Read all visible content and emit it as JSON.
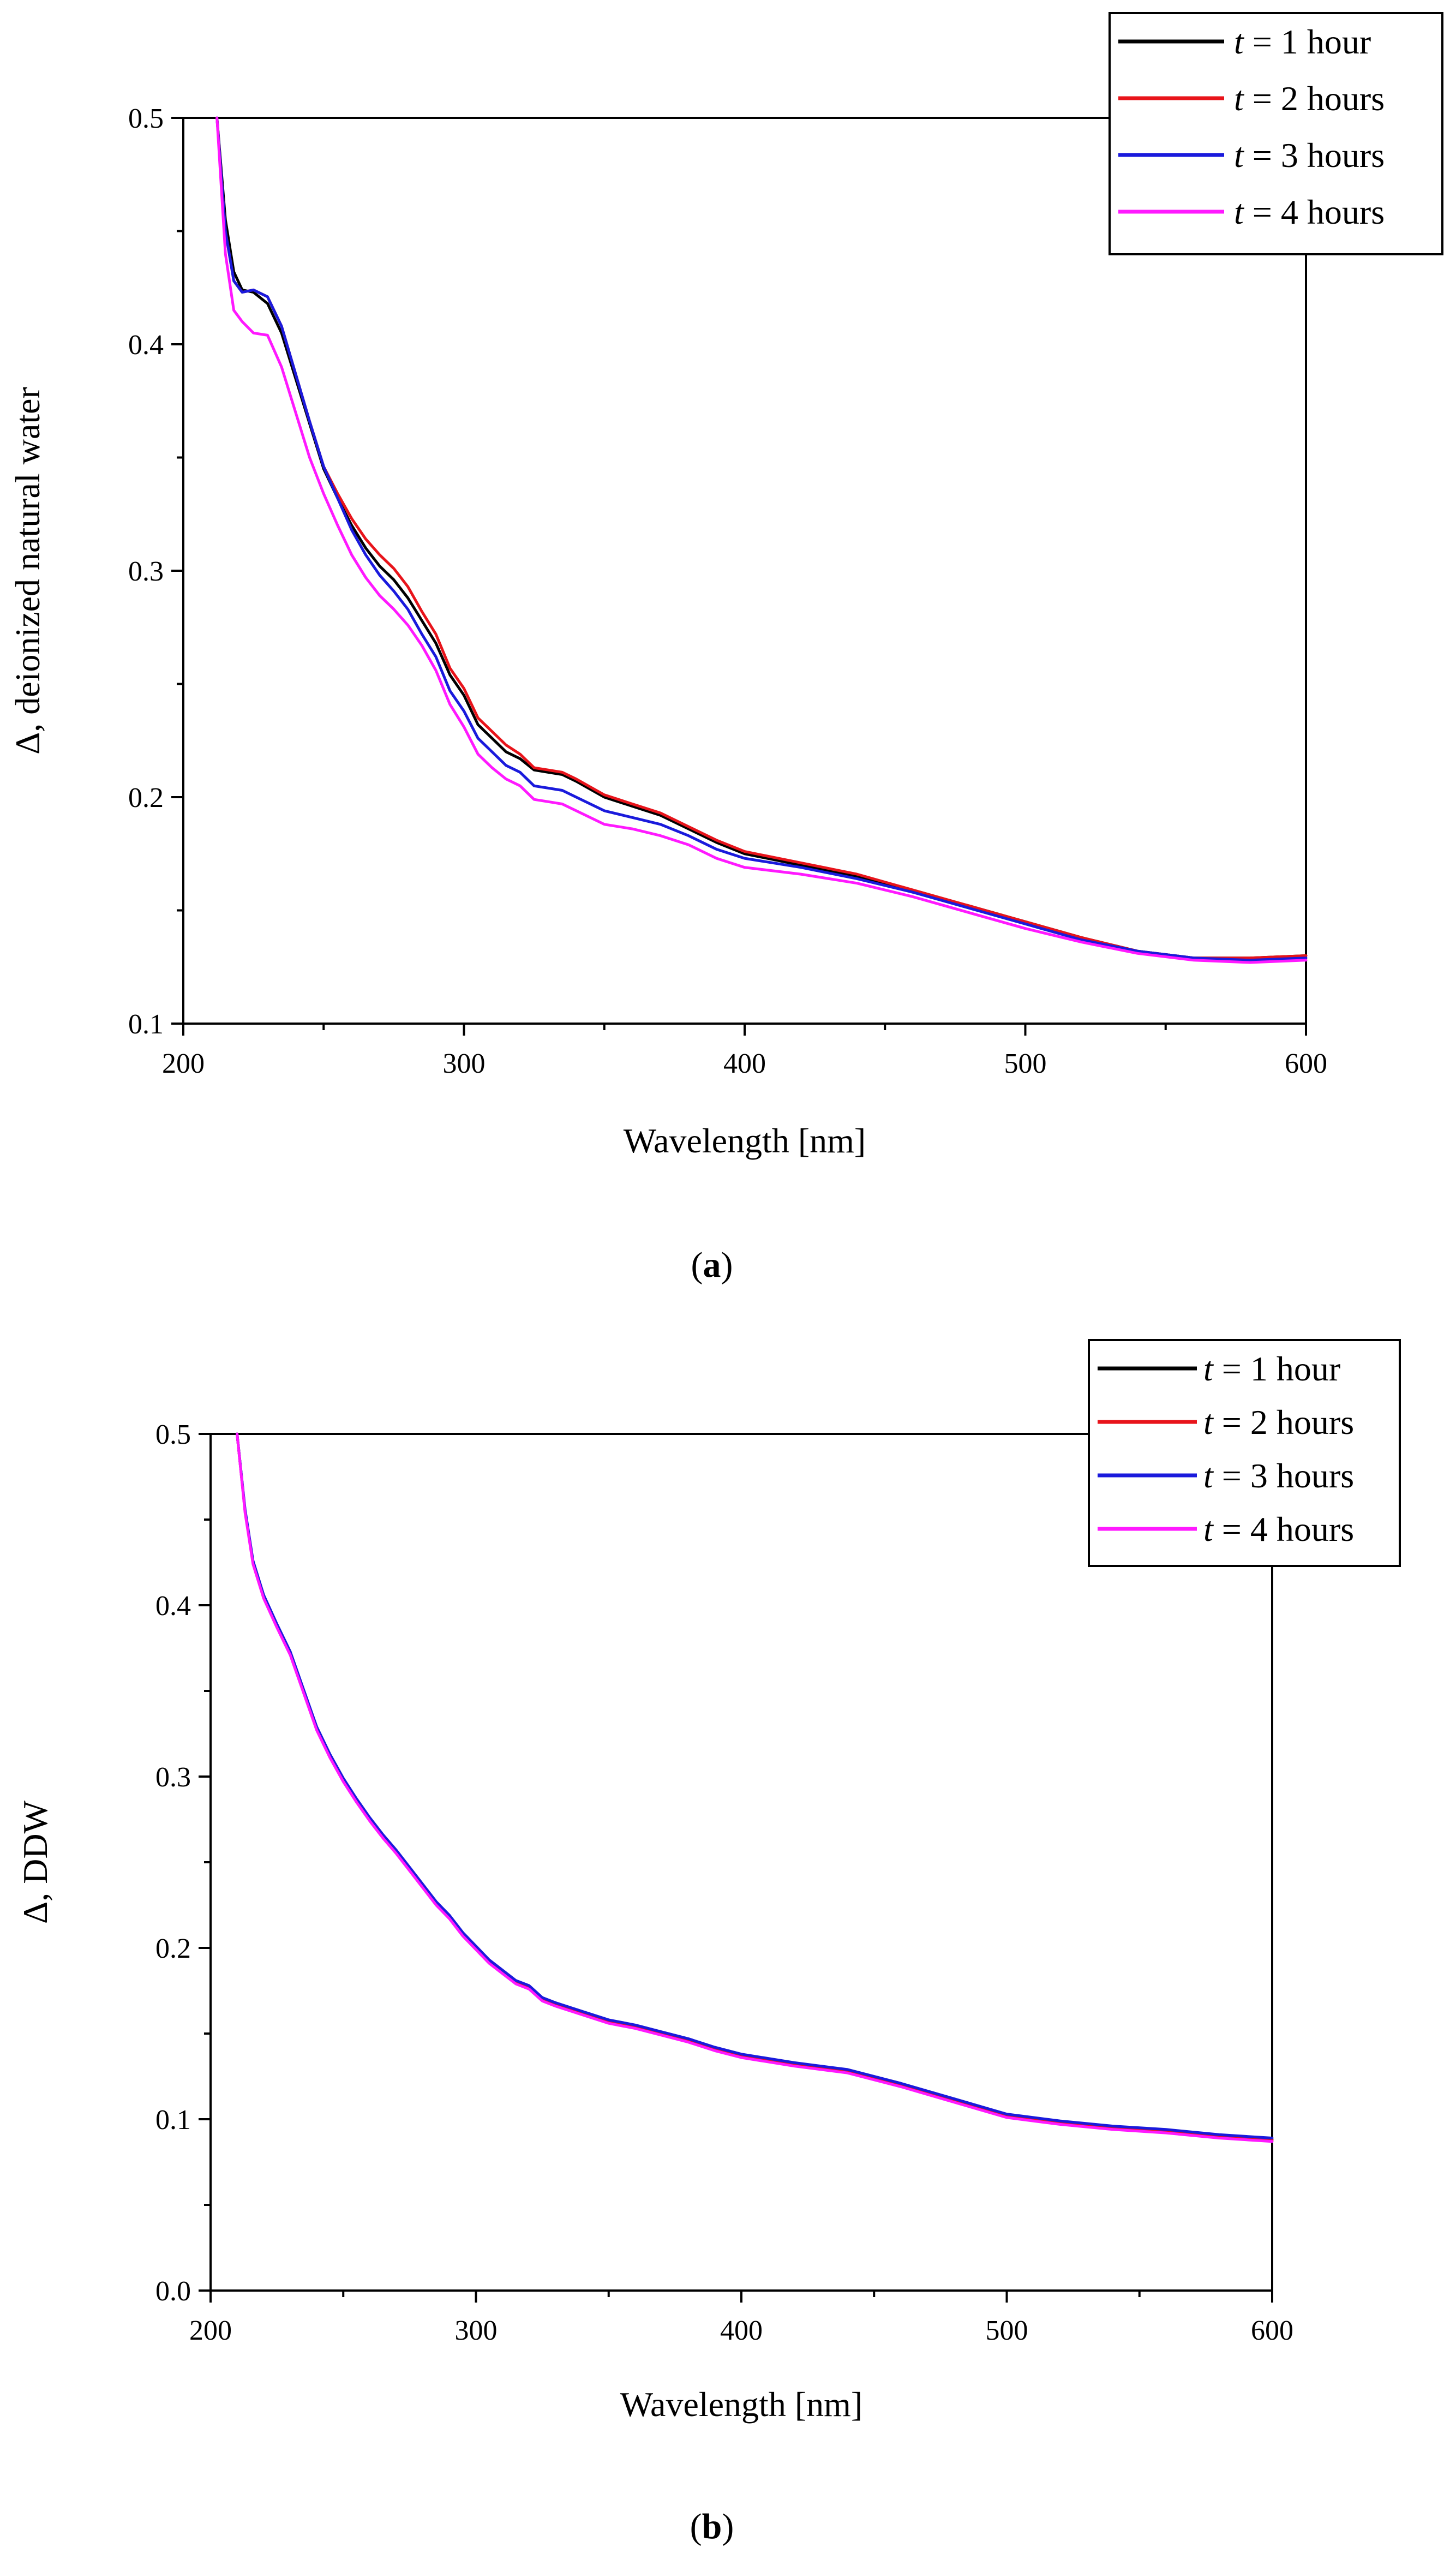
{
  "chart_data": [
    {
      "type": "line",
      "panel_label": "a",
      "xlabel": "Wavelength [nm]",
      "ylabel": "Δ, deionized natural water",
      "xlim": [
        200,
        600
      ],
      "ylim": [
        0.1,
        0.5
      ],
      "xticks": [
        "200",
        "300",
        "400",
        "500",
        "600"
      ],
      "yticks": [
        "0.1",
        "0.2",
        "0.3",
        "0.4",
        "0.5"
      ],
      "legend_position": "top-right",
      "x": [
        212,
        215,
        218,
        221,
        225,
        230,
        235,
        240,
        245,
        250,
        255,
        260,
        265,
        270,
        275,
        280,
        285,
        290,
        295,
        300,
        305,
        310,
        315,
        320,
        325,
        330,
        335,
        340,
        350,
        360,
        370,
        380,
        390,
        400,
        420,
        440,
        460,
        480,
        500,
        520,
        540,
        560,
        580,
        600
      ],
      "series": [
        {
          "name": "t = 1 hour",
          "var": "t",
          "rest": " = 1 hour",
          "color": "#000000",
          "values": [
            0.5,
            0.455,
            0.432,
            0.424,
            0.423,
            0.418,
            0.405,
            0.385,
            0.365,
            0.345,
            0.332,
            0.32,
            0.31,
            0.302,
            0.296,
            0.288,
            0.278,
            0.268,
            0.254,
            0.245,
            0.232,
            0.226,
            0.22,
            0.217,
            0.212,
            0.211,
            0.21,
            0.207,
            0.2,
            0.196,
            0.192,
            0.186,
            0.18,
            0.175,
            0.17,
            0.165,
            0.158,
            0.152,
            0.145,
            0.138,
            0.132,
            0.129,
            0.129,
            0.13
          ]
        },
        {
          "name": "t = 2 hours",
          "var": "t",
          "rest": " = 2 hours",
          "color": "#e8141b",
          "values": [
            0.5,
            0.45,
            0.428,
            0.423,
            0.424,
            0.421,
            0.408,
            0.387,
            0.366,
            0.346,
            0.334,
            0.323,
            0.314,
            0.307,
            0.301,
            0.293,
            0.282,
            0.272,
            0.257,
            0.248,
            0.235,
            0.229,
            0.223,
            0.219,
            0.213,
            0.212,
            0.211,
            0.208,
            0.201,
            0.197,
            0.193,
            0.187,
            0.181,
            0.176,
            0.171,
            0.166,
            0.159,
            0.152,
            0.145,
            0.138,
            0.132,
            0.129,
            0.129,
            0.13
          ]
        },
        {
          "name": "t = 3 hours",
          "var": "t",
          "rest": " = 3 hours",
          "color": "#1a1adc",
          "values": [
            0.5,
            0.45,
            0.428,
            0.423,
            0.424,
            0.421,
            0.408,
            0.387,
            0.366,
            0.346,
            0.332,
            0.318,
            0.307,
            0.298,
            0.291,
            0.283,
            0.272,
            0.262,
            0.247,
            0.238,
            0.226,
            0.22,
            0.214,
            0.211,
            0.205,
            0.204,
            0.203,
            0.2,
            0.194,
            0.191,
            0.188,
            0.183,
            0.177,
            0.173,
            0.169,
            0.164,
            0.158,
            0.151,
            0.144,
            0.137,
            0.132,
            0.129,
            0.128,
            0.129
          ]
        },
        {
          "name": "t = 4 hours",
          "var": "t",
          "rest": " = 4 hours",
          "color": "#ff19ff",
          "values": [
            0.5,
            0.44,
            0.415,
            0.41,
            0.405,
            0.404,
            0.39,
            0.37,
            0.35,
            0.334,
            0.32,
            0.307,
            0.297,
            0.289,
            0.283,
            0.276,
            0.267,
            0.256,
            0.241,
            0.231,
            0.219,
            0.213,
            0.208,
            0.205,
            0.199,
            0.198,
            0.197,
            0.194,
            0.188,
            0.186,
            0.183,
            0.179,
            0.173,
            0.169,
            0.166,
            0.162,
            0.156,
            0.149,
            0.142,
            0.136,
            0.131,
            0.128,
            0.127,
            0.128
          ]
        }
      ]
    },
    {
      "type": "line",
      "panel_label": "b",
      "xlabel": "Wavelength [nm]",
      "ylabel": "Δ, DDW",
      "xlim": [
        200,
        600
      ],
      "ylim": [
        0.0,
        0.5
      ],
      "xticks": [
        "200",
        "300",
        "400",
        "500",
        "600"
      ],
      "yticks": [
        "0.0",
        "0.1",
        "0.2",
        "0.3",
        "0.4",
        "0.5"
      ],
      "legend_position": "top-right",
      "x": [
        210,
        213,
        216,
        220,
        225,
        230,
        235,
        240,
        245,
        250,
        255,
        260,
        265,
        270,
        275,
        280,
        285,
        290,
        295,
        300,
        305,
        310,
        315,
        320,
        325,
        330,
        340,
        350,
        360,
        370,
        380,
        390,
        400,
        420,
        440,
        460,
        480,
        500,
        520,
        540,
        560,
        580,
        600
      ],
      "series": [
        {
          "name": "t = 1 hour",
          "var": "t",
          "rest": " = 1 hour",
          "color": "#000000",
          "values": [
            0.5,
            0.455,
            0.425,
            0.405,
            0.388,
            0.372,
            0.35,
            0.328,
            0.312,
            0.298,
            0.286,
            0.275,
            0.265,
            0.256,
            0.246,
            0.236,
            0.226,
            0.218,
            0.208,
            0.2,
            0.192,
            0.186,
            0.18,
            0.177,
            0.17,
            0.167,
            0.162,
            0.157,
            0.154,
            0.15,
            0.146,
            0.141,
            0.137,
            0.132,
            0.128,
            0.12,
            0.111,
            0.102,
            0.098,
            0.095,
            0.093,
            0.09,
            0.088
          ]
        },
        {
          "name": "t = 2 hours",
          "var": "t",
          "rest": " = 2 hours",
          "color": "#e8141b",
          "values": [
            0.5,
            0.455,
            0.425,
            0.405,
            0.388,
            0.372,
            0.35,
            0.328,
            0.312,
            0.298,
            0.286,
            0.275,
            0.265,
            0.256,
            0.246,
            0.236,
            0.226,
            0.218,
            0.208,
            0.2,
            0.192,
            0.186,
            0.18,
            0.177,
            0.17,
            0.167,
            0.162,
            0.157,
            0.154,
            0.15,
            0.146,
            0.141,
            0.137,
            0.132,
            0.128,
            0.12,
            0.111,
            0.102,
            0.098,
            0.095,
            0.093,
            0.09,
            0.088
          ]
        },
        {
          "name": "t = 3 hours",
          "var": "t",
          "rest": " = 3 hours",
          "color": "#1a1adc",
          "values": [
            0.5,
            0.456,
            0.426,
            0.406,
            0.389,
            0.373,
            0.351,
            0.329,
            0.313,
            0.299,
            0.287,
            0.276,
            0.266,
            0.257,
            0.247,
            0.237,
            0.227,
            0.219,
            0.209,
            0.201,
            0.193,
            0.187,
            0.181,
            0.178,
            0.171,
            0.168,
            0.163,
            0.158,
            0.155,
            0.151,
            0.147,
            0.142,
            0.138,
            0.133,
            0.129,
            0.121,
            0.112,
            0.103,
            0.099,
            0.096,
            0.094,
            0.091,
            0.089
          ]
        },
        {
          "name": "t = 4 hours",
          "var": "t",
          "rest": " = 4 hours",
          "color": "#ff19ff",
          "values": [
            0.5,
            0.454,
            0.424,
            0.404,
            0.387,
            0.371,
            0.349,
            0.327,
            0.311,
            0.297,
            0.285,
            0.274,
            0.264,
            0.255,
            0.245,
            0.235,
            0.225,
            0.217,
            0.207,
            0.199,
            0.191,
            0.185,
            0.179,
            0.176,
            0.169,
            0.166,
            0.161,
            0.156,
            0.153,
            0.149,
            0.145,
            0.14,
            0.136,
            0.131,
            0.127,
            0.119,
            0.11,
            0.101,
            0.097,
            0.094,
            0.092,
            0.089,
            0.087
          ]
        }
      ]
    }
  ]
}
